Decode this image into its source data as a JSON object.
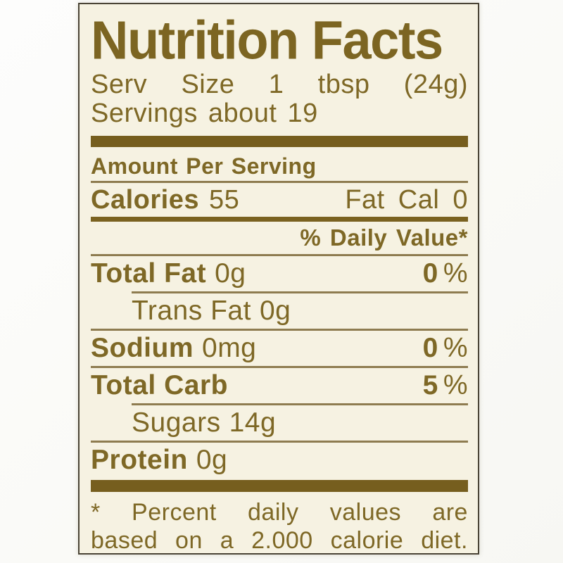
{
  "label": {
    "title": "Nutrition Facts",
    "serv_size_words": [
      "Serv",
      "Size",
      "1",
      "tbsp",
      "(24g)"
    ],
    "servings_text": "Servings about 19",
    "amount_per_serving": "Amount Per Serving",
    "calories_label": "Calories",
    "calories_value": "55",
    "fat_cal_text": "Fat Cal 0",
    "daily_value_header": "% Daily Value*",
    "rows": [
      {
        "name": "Total Fat",
        "amount": "0g",
        "dv": "0",
        "pct": "%"
      },
      {
        "name": "Trans Fat",
        "amount": "0g"
      },
      {
        "name": "Sodium",
        "amount": "0mg",
        "dv": "0",
        "pct": "%"
      },
      {
        "name": "Total Carb",
        "amount": "",
        "dv": "5",
        "pct": "%"
      },
      {
        "name": "Sugars",
        "amount": "14g"
      },
      {
        "name": "Protein",
        "amount": "0g"
      }
    ],
    "footnote_words_line1": [
      "*",
      "Percent",
      "daily",
      "values",
      "are"
    ],
    "footnote_words_line2": [
      "based",
      "on",
      "a",
      "2.000",
      "calorie",
      "diet."
    ],
    "colors": {
      "ink": "#7e6826",
      "thick_bar": "#765e1e",
      "thin_rule": "#8e7c50",
      "label_background": "#f6f2e2",
      "outer_border": "#4a4436",
      "photo_background": "#fbfbf8"
    }
  }
}
